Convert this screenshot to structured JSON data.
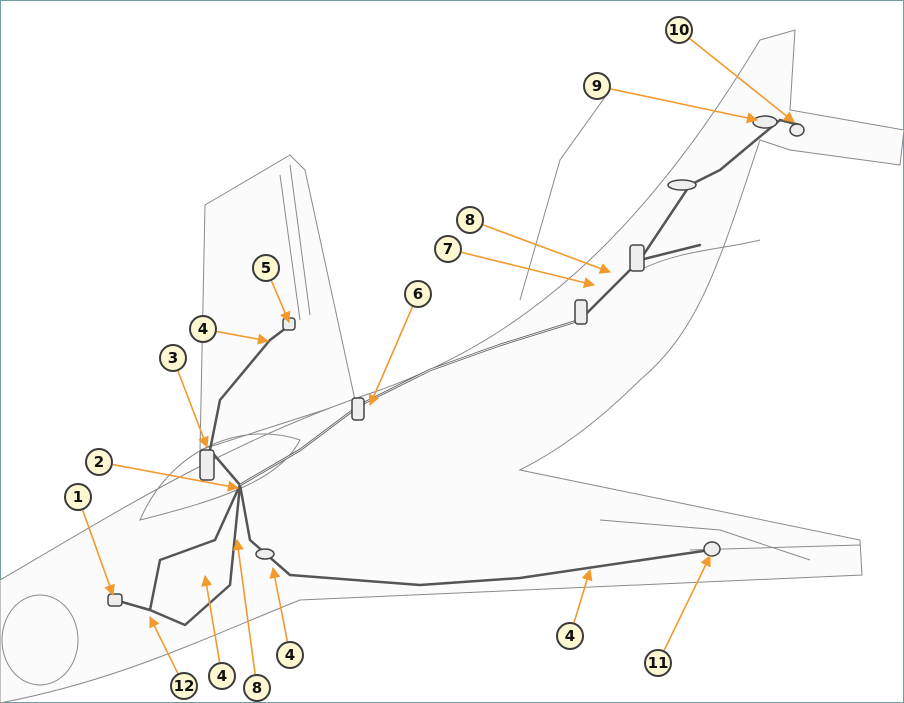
{
  "callouts": [
    "1",
    "2",
    "3",
    "4",
    "5",
    "6",
    "7",
    "8",
    "9",
    "10",
    "4",
    "11",
    "12",
    "4",
    "8",
    "4"
  ]
}
